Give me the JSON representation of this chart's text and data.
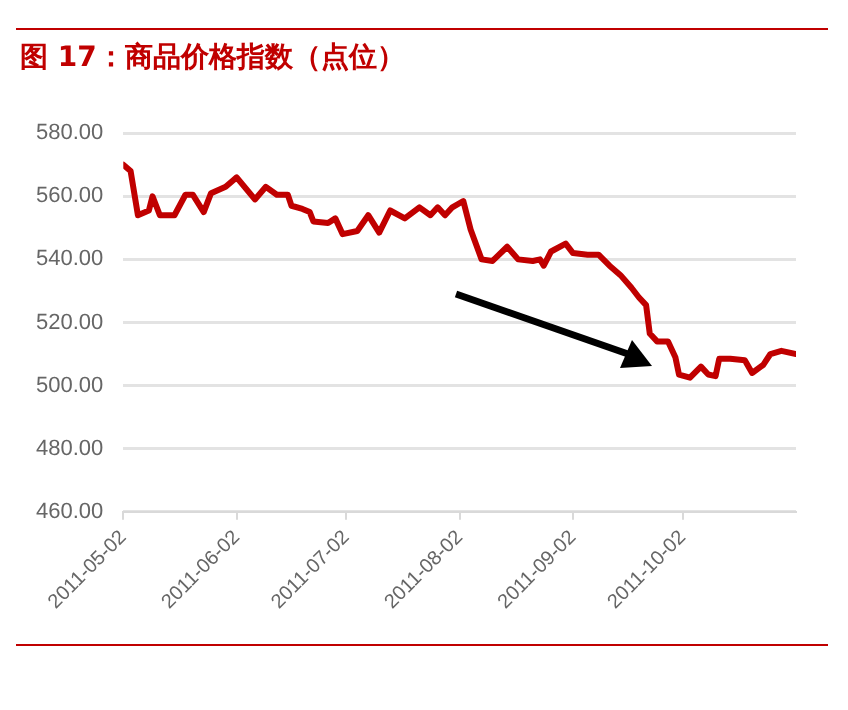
{
  "chart_data": {
    "type": "line",
    "title": "图 17：商品价格指数（点位）",
    "x": [
      "2011-05-02",
      "2011-05-04",
      "2011-05-06",
      "2011-05-09",
      "2011-05-10",
      "2011-05-12",
      "2011-05-16",
      "2011-05-19",
      "2011-05-21",
      "2011-05-24",
      "2011-05-26",
      "2011-05-30",
      "2011-06-01",
      "2011-06-02",
      "2011-06-07",
      "2011-06-10",
      "2011-06-13",
      "2011-06-16",
      "2011-06-17",
      "2011-06-20",
      "2011-06-22",
      "2011-06-23",
      "2011-06-27",
      "2011-06-29",
      "2011-07-01",
      "2011-07-05",
      "2011-07-08",
      "2011-07-11",
      "2011-07-14",
      "2011-07-18",
      "2011-07-22",
      "2011-07-25",
      "2011-07-27",
      "2011-07-29",
      "2011-07-31",
      "2011-08-03",
      "2011-08-05",
      "2011-08-08",
      "2011-08-11",
      "2011-08-15",
      "2011-08-18",
      "2011-08-22",
      "2011-08-24",
      "2011-08-25",
      "2011-08-27",
      "2011-08-31",
      "2011-09-02",
      "2011-09-06",
      "2011-09-09",
      "2011-09-12",
      "2011-09-15",
      "2011-09-18",
      "2011-09-20",
      "2011-09-22",
      "2011-09-23",
      "2011-09-25",
      "2011-09-28",
      "2011-09-30",
      "2011-10-01",
      "2011-10-04",
      "2011-10-07",
      "2011-10-09",
      "2011-10-11",
      "2011-10-12",
      "2011-10-15",
      "2011-10-19",
      "2011-10-21",
      "2011-10-24",
      "2011-10-26",
      "2011-10-29",
      "2011-11-02"
    ],
    "series": [
      {
        "color": "#c00000",
        "values": [
          570,
          568,
          554,
          555.5,
          560,
          554,
          554,
          560.5,
          560.5,
          555,
          561,
          563,
          565,
          566,
          559,
          563,
          560.5,
          560.5,
          557,
          556,
          555,
          552,
          551.5,
          553,
          548,
          549,
          554,
          548.5,
          555.5,
          553,
          556.5,
          554,
          556.5,
          554,
          556.5,
          558.5,
          549.5,
          540,
          539.5,
          544,
          540,
          539.5,
          540,
          538,
          542.5,
          545,
          542,
          541.5,
          541.5,
          538,
          535,
          531,
          528,
          525.5,
          516.5,
          514,
          514,
          509,
          503.5,
          502.5,
          506,
          503.5,
          503,
          508.5,
          508.5,
          508,
          504,
          506.5,
          510,
          511,
          510
        ]
      }
    ],
    "xlim": [
      "2011-05-02",
      "2011-11-02"
    ],
    "xticks": [
      "2011-05-02",
      "2011-06-02",
      "2011-07-02",
      "2011-08-02",
      "2011-09-02",
      "2011-10-02"
    ],
    "ylim": [
      460,
      580
    ],
    "yticks": [
      {
        "value": 460,
        "label": "460.00"
      },
      {
        "value": 480,
        "label": "480.00"
      },
      {
        "value": 500,
        "label": "500.00"
      },
      {
        "value": 520,
        "label": "520.00"
      },
      {
        "value": 540,
        "label": "540.00"
      },
      {
        "value": 560,
        "label": "560.00"
      },
      {
        "value": 580,
        "label": "580.00"
      }
    ],
    "grid": "y",
    "legend": false,
    "marker": "none",
    "line_style": "solid"
  }
}
